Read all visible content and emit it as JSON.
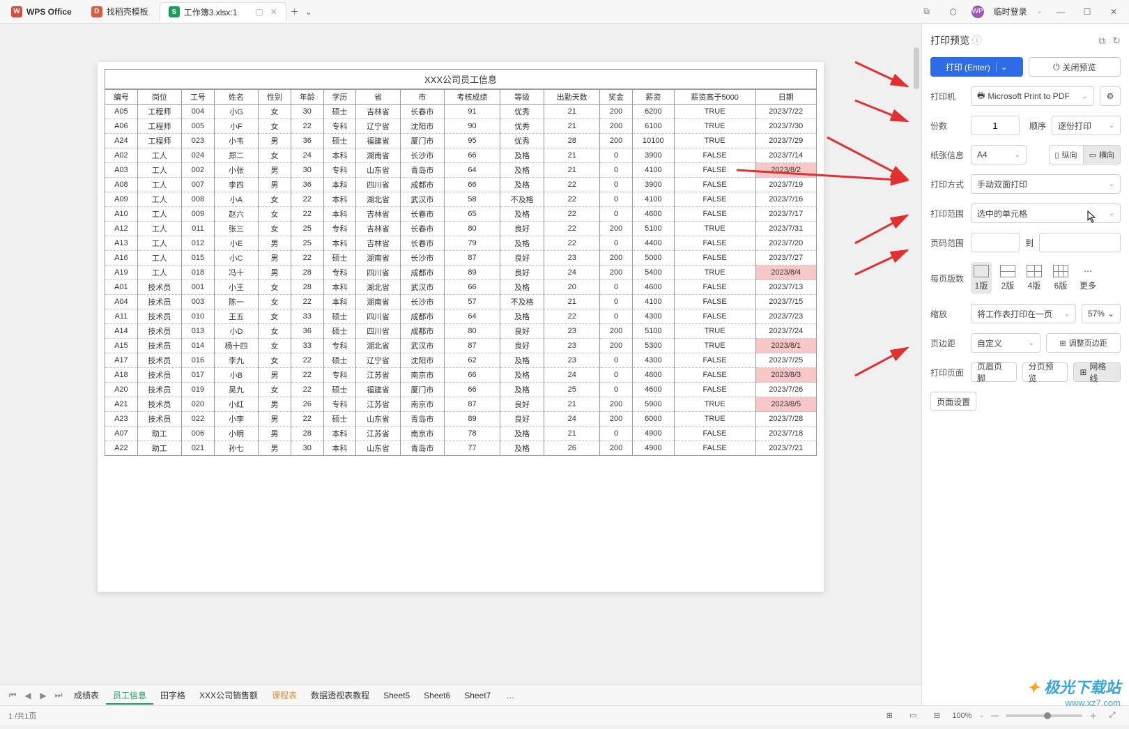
{
  "titlebar": {
    "app_name": "WPS Office",
    "template_tab": "找稻壳模板",
    "doc_tab": "工作簿3.xlsx:1",
    "login_label": "临时登录"
  },
  "preview": {
    "title": "XXX公司员工信息",
    "columns": [
      "编号",
      "岗位",
      "工号",
      "姓名",
      "性别",
      "年龄",
      "学历",
      "省",
      "市",
      "考核成绩",
      "等级",
      "出勤天数",
      "奖金",
      "薪资",
      "薪资高于5000",
      "日期"
    ],
    "rows": [
      {
        "c": [
          "A05",
          "工程师",
          "004",
          "小G",
          "女",
          "30",
          "硕士",
          "吉林省",
          "长春市",
          "91",
          "优秀",
          "21",
          "200",
          "6200",
          "TRUE",
          "2023/7/22"
        ],
        "hl": false
      },
      {
        "c": [
          "A06",
          "工程师",
          "005",
          "小F",
          "女",
          "22",
          "专科",
          "辽宁省",
          "沈阳市",
          "90",
          "优秀",
          "21",
          "200",
          "6100",
          "TRUE",
          "2023/7/30"
        ],
        "hl": false
      },
      {
        "c": [
          "A24",
          "工程师",
          "023",
          "小韦",
          "男",
          "36",
          "硕士",
          "福建省",
          "厦门市",
          "95",
          "优秀",
          "28",
          "200",
          "10100",
          "TRUE",
          "2023/7/29"
        ],
        "hl": false
      },
      {
        "c": [
          "A02",
          "工人",
          "024",
          "郑二",
          "女",
          "24",
          "本科",
          "湖南省",
          "长沙市",
          "66",
          "及格",
          "21",
          "0",
          "3900",
          "FALSE",
          "2023/7/14"
        ],
        "hl": false
      },
      {
        "c": [
          "A03",
          "工人",
          "002",
          "小张",
          "男",
          "30",
          "专科",
          "山东省",
          "青岛市",
          "64",
          "及格",
          "21",
          "0",
          "4100",
          "FALSE",
          "2023/8/2"
        ],
        "hl": true
      },
      {
        "c": [
          "A08",
          "工人",
          "007",
          "李四",
          "男",
          "36",
          "本科",
          "四川省",
          "成都市",
          "66",
          "及格",
          "22",
          "0",
          "3900",
          "FALSE",
          "2023/7/19"
        ],
        "hl": false
      },
      {
        "c": [
          "A09",
          "工人",
          "008",
          "小A",
          "女",
          "22",
          "本科",
          "湖北省",
          "武汉市",
          "58",
          "不及格",
          "22",
          "0",
          "4100",
          "FALSE",
          "2023/7/16"
        ],
        "hl": false
      },
      {
        "c": [
          "A10",
          "工人",
          "009",
          "赵六",
          "女",
          "22",
          "本科",
          "吉林省",
          "长春市",
          "65",
          "及格",
          "22",
          "0",
          "4600",
          "FALSE",
          "2023/7/17"
        ],
        "hl": false
      },
      {
        "c": [
          "A12",
          "工人",
          "011",
          "张三",
          "女",
          "25",
          "专科",
          "吉林省",
          "长春市",
          "80",
          "良好",
          "22",
          "200",
          "5100",
          "TRUE",
          "2023/7/31"
        ],
        "hl": false
      },
      {
        "c": [
          "A13",
          "工人",
          "012",
          "小E",
          "男",
          "25",
          "本科",
          "吉林省",
          "长春市",
          "79",
          "及格",
          "22",
          "0",
          "4400",
          "FALSE",
          "2023/7/20"
        ],
        "hl": false
      },
      {
        "c": [
          "A16",
          "工人",
          "015",
          "小C",
          "男",
          "22",
          "硕士",
          "湖南省",
          "长沙市",
          "87",
          "良好",
          "23",
          "200",
          "5000",
          "FALSE",
          "2023/7/27"
        ],
        "hl": false
      },
      {
        "c": [
          "A19",
          "工人",
          "018",
          "冯十",
          "男",
          "28",
          "专科",
          "四川省",
          "成都市",
          "89",
          "良好",
          "24",
          "200",
          "5400",
          "TRUE",
          "2023/8/4"
        ],
        "hl": true
      },
      {
        "c": [
          "A01",
          "技术员",
          "001",
          "小王",
          "女",
          "28",
          "本科",
          "湖北省",
          "武汉市",
          "66",
          "及格",
          "20",
          "0",
          "4600",
          "FALSE",
          "2023/7/13"
        ],
        "hl": false
      },
      {
        "c": [
          "A04",
          "技术员",
          "003",
          "陈一",
          "女",
          "22",
          "本科",
          "湖南省",
          "长沙市",
          "57",
          "不及格",
          "21",
          "0",
          "4100",
          "FALSE",
          "2023/7/15"
        ],
        "hl": false
      },
      {
        "c": [
          "A11",
          "技术员",
          "010",
          "王五",
          "女",
          "33",
          "硕士",
          "四川省",
          "成都市",
          "64",
          "及格",
          "22",
          "0",
          "4300",
          "FALSE",
          "2023/7/23"
        ],
        "hl": false
      },
      {
        "c": [
          "A14",
          "技术员",
          "013",
          "小D",
          "女",
          "36",
          "硕士",
          "四川省",
          "成都市",
          "80",
          "良好",
          "23",
          "200",
          "5100",
          "TRUE",
          "2023/7/24"
        ],
        "hl": false
      },
      {
        "c": [
          "A15",
          "技术员",
          "014",
          "杨十四",
          "女",
          "33",
          "专科",
          "湖北省",
          "武汉市",
          "87",
          "良好",
          "23",
          "200",
          "5300",
          "TRUE",
          "2023/8/1"
        ],
        "hl": true
      },
      {
        "c": [
          "A17",
          "技术员",
          "016",
          "李九",
          "女",
          "22",
          "硕士",
          "辽宁省",
          "沈阳市",
          "62",
          "及格",
          "23",
          "0",
          "4300",
          "FALSE",
          "2023/7/25"
        ],
        "hl": false
      },
      {
        "c": [
          "A18",
          "技术员",
          "017",
          "小B",
          "男",
          "22",
          "专科",
          "江苏省",
          "南京市",
          "66",
          "及格",
          "24",
          "0",
          "4600",
          "FALSE",
          "2023/8/3"
        ],
        "hl": true
      },
      {
        "c": [
          "A20",
          "技术员",
          "019",
          "吴九",
          "女",
          "22",
          "硕士",
          "福建省",
          "厦门市",
          "66",
          "及格",
          "25",
          "0",
          "4600",
          "FALSE",
          "2023/7/26"
        ],
        "hl": false
      },
      {
        "c": [
          "A21",
          "技术员",
          "020",
          "小红",
          "男",
          "26",
          "专科",
          "江苏省",
          "南京市",
          "87",
          "良好",
          "21",
          "200",
          "5900",
          "TRUE",
          "2023/8/5"
        ],
        "hl": true
      },
      {
        "c": [
          "A23",
          "技术员",
          "022",
          "小李",
          "男",
          "22",
          "硕士",
          "山东省",
          "青岛市",
          "89",
          "良好",
          "24",
          "200",
          "6000",
          "TRUE",
          "2023/7/28"
        ],
        "hl": false
      },
      {
        "c": [
          "A07",
          "助工",
          "006",
          "小明",
          "男",
          "28",
          "本科",
          "江苏省",
          "南京市",
          "78",
          "及格",
          "21",
          "0",
          "4900",
          "FALSE",
          "2023/7/18"
        ],
        "hl": false
      },
      {
        "c": [
          "A22",
          "助工",
          "021",
          "孙七",
          "男",
          "30",
          "本科",
          "山东省",
          "青岛市",
          "77",
          "及格",
          "26",
          "200",
          "4900",
          "FALSE",
          "2023/7/21"
        ],
        "hl": false
      }
    ]
  },
  "panel": {
    "title": "打印预览",
    "print_btn": "打印 (Enter)",
    "close_btn": "关闭预览",
    "printer_label": "打印机",
    "printer_value": "Microsoft Print to PDF",
    "copies_label": "份数",
    "copies_value": "1",
    "order_label": "顺序",
    "order_value": "逐份打印",
    "paper_label": "纸张信息",
    "paper_value": "A4",
    "portrait": "纵向",
    "landscape": "横向",
    "duplex_label": "打印方式",
    "duplex_value": "手动双面打印",
    "range_label": "打印范围",
    "range_value": "选中的单元格",
    "pagerange_label": "页码范围",
    "pagerange_to": "到",
    "perpage_label": "每页版数",
    "layout1": "1版",
    "layout2": "2版",
    "layout4": "4版",
    "layout6": "6版",
    "layout_more": "更多",
    "zoom_label": "缩放",
    "zoom_value": "将工作表打印在一页",
    "zoom_pct": "57%",
    "margin_label": "页边距",
    "margin_value": "自定义",
    "margin_adjust": "调整页边距",
    "printpage_label": "打印页面",
    "headerfooter": "页眉页脚",
    "pagebreak": "分页预览",
    "gridlines": "网格线",
    "pagesetup": "页面设置"
  },
  "sheets": {
    "tabs": [
      "成绩表",
      "员工信息",
      "田字格",
      "XXX公司销售额",
      "课程表",
      "数据透视表教程",
      "Sheet5",
      "Sheet6",
      "Sheet7"
    ],
    "more": "…"
  },
  "status": {
    "page": "1 /共1页",
    "zoom": "100%"
  },
  "watermark": {
    "name": "极光下载站",
    "url": "www.xz7.com"
  },
  "colors": {
    "primary": "#2e6be6",
    "highlight_row": "#f8c8c8",
    "arrow": "#e03030"
  }
}
